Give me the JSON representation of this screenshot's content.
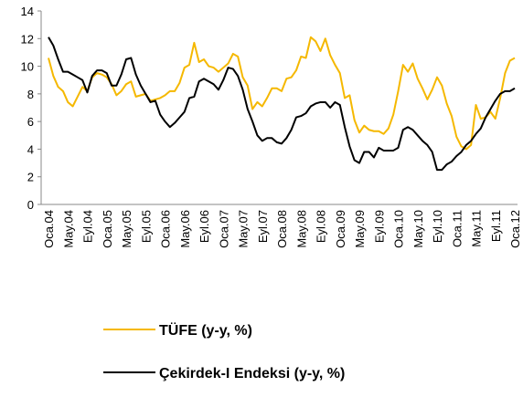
{
  "chart_data": {
    "type": "line",
    "categories": [
      "Oca.04",
      null,
      null,
      null,
      "May.04",
      null,
      null,
      null,
      "Eyl.04",
      null,
      null,
      null,
      "Oca.05",
      null,
      null,
      null,
      "May.05",
      null,
      null,
      null,
      "Eyl.05",
      null,
      null,
      null,
      "Oca.06",
      null,
      null,
      null,
      "May.06",
      null,
      null,
      null,
      "Eyl.06",
      null,
      null,
      null,
      "Oca.07",
      null,
      null,
      null,
      "May.07",
      null,
      null,
      null,
      "Eyl.07",
      null,
      null,
      null,
      "Oca.08",
      null,
      null,
      null,
      "May.08",
      null,
      null,
      null,
      "Eyl.08",
      null,
      null,
      null,
      "Oca.09",
      null,
      null,
      null,
      "May.09",
      null,
      null,
      null,
      "Eyl.09",
      null,
      null,
      null,
      "Oca.10",
      null,
      null,
      null,
      "May.10",
      null,
      null,
      null,
      "Eyl.10",
      null,
      null,
      null,
      "Oca.11",
      null,
      null,
      null,
      "May.11",
      null,
      null,
      null,
      "Eyl.11",
      null,
      null,
      null,
      "Oca.12"
    ],
    "series": [
      {
        "name": "TÜFE (y-y, %)",
        "color": "#f5b800",
        "values": [
          10.6,
          9.3,
          8.5,
          8.2,
          7.4,
          7.1,
          7.8,
          8.5,
          8.2,
          9.2,
          9.5,
          9.4,
          9.2,
          8.7,
          7.9,
          8.2,
          8.7,
          8.9,
          7.8,
          7.9,
          8.0,
          7.5,
          7.6,
          7.7,
          7.9,
          8.2,
          8.2,
          8.8,
          9.9,
          10.1,
          11.7,
          10.3,
          10.5,
          10.0,
          9.9,
          9.6,
          9.9,
          10.2,
          10.9,
          10.7,
          9.2,
          8.6,
          6.9,
          7.4,
          7.1,
          7.7,
          8.4,
          8.4,
          8.2,
          9.1,
          9.2,
          9.7,
          10.7,
          10.6,
          12.1,
          11.8,
          11.1,
          12.0,
          10.8,
          10.1,
          9.5,
          7.7,
          7.9,
          6.1,
          5.2,
          5.7,
          5.4,
          5.3,
          5.3,
          5.1,
          5.5,
          6.5,
          8.2,
          10.1,
          9.6,
          10.2,
          9.1,
          8.4,
          7.6,
          8.3,
          9.2,
          8.6,
          7.3,
          6.4,
          4.9,
          4.2,
          4.0,
          4.3,
          7.2,
          6.2,
          6.3,
          6.7,
          6.2,
          7.7,
          9.5,
          10.4,
          10.6
        ]
      },
      {
        "name": "Çekirdek-I Endeksi (y-y, %)",
        "color": "#000000",
        "values": [
          12.1,
          11.5,
          10.5,
          9.6,
          9.6,
          9.4,
          9.2,
          9.0,
          8.1,
          9.3,
          9.7,
          9.7,
          9.5,
          8.6,
          8.6,
          9.4,
          10.5,
          10.6,
          9.4,
          8.6,
          8.0,
          7.4,
          7.5,
          6.5,
          6.0,
          5.6,
          5.9,
          6.3,
          6.7,
          7.7,
          7.8,
          8.9,
          9.1,
          8.9,
          8.7,
          8.3,
          9.0,
          9.9,
          9.8,
          9.3,
          8.3,
          6.9,
          6.0,
          5.0,
          4.6,
          4.8,
          4.8,
          4.5,
          4.4,
          4.8,
          5.4,
          6.3,
          6.4,
          6.6,
          7.1,
          7.3,
          7.4,
          7.4,
          7.0,
          7.4,
          7.2,
          5.6,
          4.2,
          3.2,
          3.0,
          3.8,
          3.8,
          3.4,
          4.1,
          3.9,
          3.9,
          3.9,
          4.1,
          5.4,
          5.6,
          5.4,
          5.0,
          4.6,
          4.3,
          3.8,
          2.5,
          2.5,
          2.9,
          3.1,
          3.5,
          3.8,
          4.3,
          4.6,
          5.1,
          5.5,
          6.3,
          6.9,
          7.5,
          8.0,
          8.2,
          8.2,
          8.4
        ]
      }
    ],
    "ylim": [
      0,
      14
    ],
    "yticks": [
      0,
      2,
      4,
      6,
      8,
      10,
      12,
      14
    ],
    "grid": false,
    "legend": "bottom"
  }
}
